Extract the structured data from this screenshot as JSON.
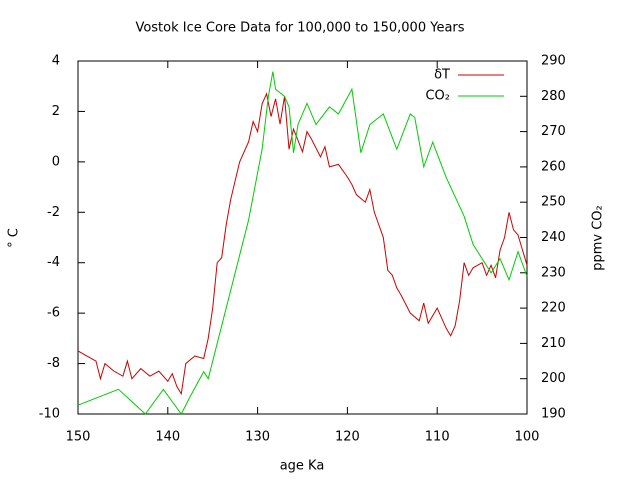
{
  "chart_data": {
    "type": "line",
    "title": "Vostok Ice Core Data for 100,000 to 150,000 Years",
    "x_label": "age Ka",
    "y_label": "° C",
    "y2_label": "ppmv CO₂",
    "xlim": [
      150,
      100
    ],
    "xticks": [
      150,
      140,
      130,
      120,
      110,
      100
    ],
    "ylim": [
      -10,
      4
    ],
    "yticks": [
      -10,
      -8,
      -6,
      -4,
      -2,
      0,
      2,
      4
    ],
    "y2lim": [
      190,
      290
    ],
    "y2ticks": [
      190,
      200,
      210,
      220,
      230,
      240,
      250,
      260,
      270,
      280,
      290
    ],
    "grid": false,
    "legend": "top-right",
    "series": [
      {
        "name": "δT",
        "color": "#cc0000",
        "axis": "y",
        "x": [
          150,
          149,
          148,
          147.5,
          147,
          146,
          145,
          144.5,
          144,
          143,
          142,
          141,
          140,
          139.5,
          139,
          138.5,
          138,
          137,
          136,
          135.5,
          135,
          134.5,
          134,
          133.5,
          133,
          132,
          131,
          130.5,
          130,
          129.5,
          129,
          128.5,
          128,
          127.5,
          127,
          126.5,
          126,
          125,
          124.5,
          124,
          123,
          122.5,
          122,
          121,
          120,
          119.5,
          119,
          118,
          117.5,
          117,
          116.5,
          116,
          115.5,
          115,
          114.5,
          114,
          113,
          112,
          111.5,
          111,
          110,
          109,
          108.5,
          108,
          107.5,
          107,
          106.5,
          106,
          105,
          104.5,
          104,
          103.5,
          103,
          102.5,
          102,
          101.5,
          101,
          100.5,
          100
        ],
        "values": [
          -7.5,
          -7.7,
          -7.9,
          -8.6,
          -8.0,
          -8.3,
          -8.5,
          -7.9,
          -8.6,
          -8.2,
          -8.5,
          -8.3,
          -8.7,
          -8.4,
          -8.9,
          -9.2,
          -8.0,
          -7.7,
          -7.8,
          -7.0,
          -5.8,
          -4.0,
          -3.8,
          -2.5,
          -1.5,
          0.0,
          0.8,
          1.6,
          1.2,
          2.3,
          2.7,
          1.8,
          2.5,
          1.5,
          2.6,
          0.5,
          1.3,
          0.4,
          1.2,
          0.9,
          0.2,
          0.6,
          -0.2,
          -0.1,
          -0.6,
          -0.9,
          -1.3,
          -1.6,
          -1.1,
          -2.0,
          -2.5,
          -3.0,
          -4.3,
          -4.5,
          -5.0,
          -5.3,
          -6.0,
          -6.3,
          -5.6,
          -6.4,
          -5.8,
          -6.6,
          -6.9,
          -6.5,
          -5.5,
          -4.0,
          -4.5,
          -4.2,
          -4.0,
          -4.5,
          -4.1,
          -4.6,
          -3.5,
          -3.0,
          -2.0,
          -2.7,
          -2.9,
          -3.5,
          -4.1
        ]
      },
      {
        "name": "CO₂",
        "color": "#00cc00",
        "axis": "y2",
        "x": [
          150,
          145.5,
          142.5,
          140.5,
          138.5,
          137.5,
          136,
          135.5,
          134.5,
          133,
          131,
          129.5,
          128.8,
          128.3,
          128,
          127,
          126.5,
          126,
          125.5,
          124.5,
          123.5,
          122,
          121,
          119.5,
          118.5,
          117.5,
          116,
          114.5,
          113,
          112.5,
          111.5,
          110.5,
          109,
          107,
          106,
          104,
          103,
          102,
          101,
          100
        ],
        "values": [
          192.5,
          197,
          190,
          197,
          190,
          195,
          202,
          200,
          210,
          225,
          245,
          265,
          280,
          287,
          282,
          280,
          277,
          264,
          272,
          278,
          272,
          277,
          275,
          282,
          264,
          272,
          275,
          265,
          275,
          274,
          260,
          267,
          257,
          246,
          238,
          230,
          234,
          228,
          236,
          229
        ]
      }
    ]
  }
}
